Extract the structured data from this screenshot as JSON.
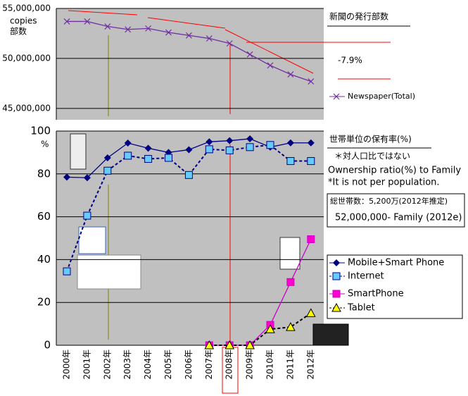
{
  "chart_data": [
    {
      "type": "line",
      "title": "新聞の発行部数",
      "ylabel": "copies",
      "ylabel2": "部数",
      "annotations": [
        "-7.9%"
      ],
      "ylim": [
        44000000,
        55000000
      ],
      "yticks": [
        {
          "value": 45000000,
          "label": "45,000,000"
        },
        {
          "value": 50000000,
          "label": "50,000,000"
        },
        {
          "value": 55000000,
          "label": "55,000,000"
        }
      ],
      "grid": true,
      "series": [
        {
          "name": "Newspaper(Total)",
          "color": "#7030a0",
          "marker": "x",
          "values": [
            53700000,
            53700000,
            53200000,
            52900000,
            53000000,
            52600000,
            52300000,
            52000000,
            51500000,
            50400000,
            49300000,
            48400000,
            47700000
          ]
        }
      ]
    },
    {
      "type": "line",
      "title": "世帯単位の保有率(%)",
      "unit": "%",
      "notes": [
        "＊対人口比ではない",
        "Ownership ratio(%) to Family",
        "*It is not per population."
      ],
      "box_notes": [
        "総世帯数：5,200万(2012年推定)",
        "52,000,000- Family (2012e)"
      ],
      "categories": [
        "2000年",
        "2001年",
        "2002年",
        "2003年",
        "2004年",
        "2005年",
        "2006年",
        "2007年",
        "2008年",
        "2009年",
        "2010年",
        "2011年",
        "2012年"
      ],
      "ylim": [
        0,
        100
      ],
      "yticks": [
        0,
        20,
        40,
        60,
        80,
        100
      ],
      "grid": true,
      "series": [
        {
          "name": "Mobile+Smart Phone",
          "color": "#000080",
          "marker": "diamond",
          "dash": false,
          "values": [
            78.5,
            78.2,
            87.5,
            94.4,
            92,
            90,
            91.3,
            95,
            95.5,
            96.4,
            92.5,
            94.5,
            94.5
          ]
        },
        {
          "name": "Internet",
          "color": "#000080",
          "marker": "square",
          "marker_fill": "#66ccff",
          "dash": true,
          "values": [
            34.5,
            60.5,
            81.5,
            88.5,
            87,
            87.5,
            79.5,
            91.5,
            91,
            92.5,
            93.5,
            86,
            86
          ]
        },
        {
          "name": "SmartPhone",
          "color": "#cc00cc",
          "marker": "square",
          "marker_fill": "#ff00cc",
          "dash": false,
          "values": [
            null,
            null,
            null,
            null,
            null,
            null,
            null,
            0,
            0,
            0,
            9.5,
            29.5,
            49.5
          ]
        },
        {
          "name": "Tablet",
          "color": "#000000",
          "marker": "triangle",
          "marker_fill": "#ffff00",
          "dash": true,
          "values": [
            null,
            null,
            null,
            null,
            null,
            null,
            null,
            0,
            0,
            0,
            7.5,
            8.5,
            15
          ]
        }
      ]
    }
  ]
}
